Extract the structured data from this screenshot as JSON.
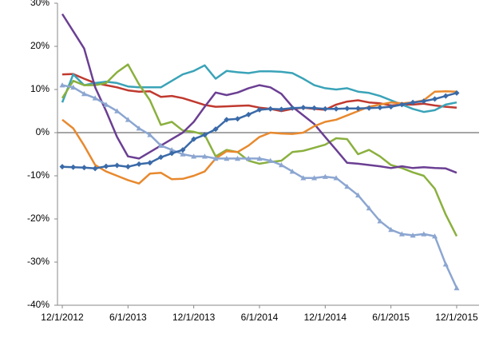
{
  "chart_data": {
    "type": "line",
    "categories": [
      "12/1/2012",
      null,
      null,
      null,
      null,
      null,
      "6/1/2013",
      null,
      null,
      null,
      null,
      null,
      "12/1/2013",
      null,
      null,
      null,
      null,
      null,
      "6/1/2014",
      null,
      null,
      null,
      null,
      null,
      "12/1/2014",
      null,
      null,
      null,
      null,
      null,
      "6/1/2015",
      null,
      null,
      null,
      null,
      null,
      "12/1/2015"
    ],
    "series": [
      {
        "color": "#c0392f",
        "marker": "none",
        "values": [
          13.5,
          13.6,
          12.5,
          11.5,
          11,
          10.5,
          9.8,
          9.5,
          9.6,
          8.3,
          8.5,
          8,
          7.2,
          6.4,
          6,
          6.1,
          6.2,
          6.3,
          5.8,
          5.5,
          5,
          5.5,
          5.8,
          5.5,
          5.3,
          6.5,
          7.2,
          7.5,
          7,
          6.8,
          6.3,
          6.5,
          6.5,
          6.7,
          6.3,
          6,
          5.8
        ]
      },
      {
        "color": "#3aa3b8",
        "marker": "none",
        "values": [
          7,
          13.5,
          11,
          11.5,
          11.8,
          11.5,
          10.7,
          10.5,
          10.5,
          10.5,
          12,
          13.5,
          14.3,
          15.6,
          12.5,
          14.3,
          14,
          13.8,
          14.2,
          14.2,
          14.1,
          13.8,
          12.5,
          11,
          10.3,
          10,
          10.3,
          9.5,
          9.2,
          8.5,
          7.5,
          6.5,
          5.5,
          4.8,
          5.2,
          6.5,
          7
        ]
      },
      {
        "color": "#8ab03e",
        "marker": "none",
        "values": [
          8,
          12,
          11,
          11,
          11.5,
          14,
          15.8,
          11.2,
          7.5,
          1.8,
          2.5,
          0.5,
          0.2,
          -0.5,
          -5.5,
          -4,
          -4.5,
          -6.5,
          -7.2,
          -6.8,
          -6.5,
          -4.5,
          -4.2,
          -3.5,
          -2.8,
          -1.3,
          -1.5,
          -5,
          -4,
          -5.5,
          -7.5,
          -8.2,
          -9.2,
          -10,
          -13,
          -19,
          -24
        ]
      },
      {
        "color": "#6b3f93",
        "marker": "none",
        "values": [
          27.5,
          23.5,
          19.5,
          10.5,
          5,
          -1,
          -5.5,
          -6,
          -4.5,
          -3,
          -1.5,
          0,
          2.5,
          6,
          9.3,
          8.7,
          9.3,
          10.3,
          11,
          10.5,
          9,
          6,
          4,
          2,
          -1,
          -4,
          -7,
          -7.2,
          -7.5,
          -7.8,
          -8.2,
          -7.8,
          -8.2,
          -8,
          -8.2,
          -8.3,
          -9.3
        ]
      },
      {
        "color": "#e8892e",
        "marker": "none",
        "values": [
          3,
          1,
          -3,
          -7.5,
          -9,
          -10,
          -11,
          -11.8,
          -9.5,
          -9.3,
          -10.8,
          -10.7,
          -10,
          -9,
          -6,
          -4.3,
          -4.5,
          -3,
          -1,
          0,
          -0.2,
          -0.3,
          0,
          1.5,
          2.5,
          3,
          4,
          5,
          6,
          6.5,
          7,
          6.8,
          7,
          7.5,
          9.5,
          9.6,
          9.5
        ]
      },
      {
        "color": "#8ca6d1",
        "marker": "triangle",
        "values": [
          11,
          10.5,
          9,
          8,
          6.5,
          5,
          3,
          1,
          -0.5,
          -3,
          -4,
          -5,
          -5.5,
          -5.5,
          -6,
          -6,
          -6,
          -6,
          -6,
          -6.5,
          -7.5,
          -9,
          -10.5,
          -10.5,
          -10.2,
          -10.5,
          -12.5,
          -14.5,
          -17.5,
          -20.5,
          -22.5,
          -23.5,
          -23.8,
          -23.5,
          -24,
          -30.5,
          -36
        ]
      },
      {
        "color": "#3a6aa8",
        "marker": "diamond",
        "values": [
          -7.9,
          -8,
          -8.1,
          -8.3,
          -7.8,
          -7.6,
          -7.9,
          -7.3,
          -7,
          -5.7,
          -4.8,
          -4,
          -1.5,
          -0.5,
          0.8,
          3,
          3.2,
          4.2,
          5.3,
          5.5,
          5.4,
          5.7,
          5.8,
          5.7,
          5.5,
          5.5,
          5.6,
          5.6,
          5.7,
          5.8,
          6,
          6.5,
          7,
          7.3,
          7.8,
          8.5,
          9.2
        ]
      }
    ],
    "ylim": [
      -40,
      30
    ],
    "yticks": [
      {
        "value": -40,
        "label": "-40%"
      },
      {
        "value": -30,
        "label": "-30%"
      },
      {
        "value": -20,
        "label": "-20%"
      },
      {
        "value": -10,
        "label": "-10%"
      },
      {
        "value": 0,
        "label": "0%"
      },
      {
        "value": 10,
        "label": "10%"
      },
      {
        "value": 20,
        "label": "20%"
      },
      {
        "value": 30,
        "label": "30%"
      }
    ],
    "zero_line": true
  }
}
